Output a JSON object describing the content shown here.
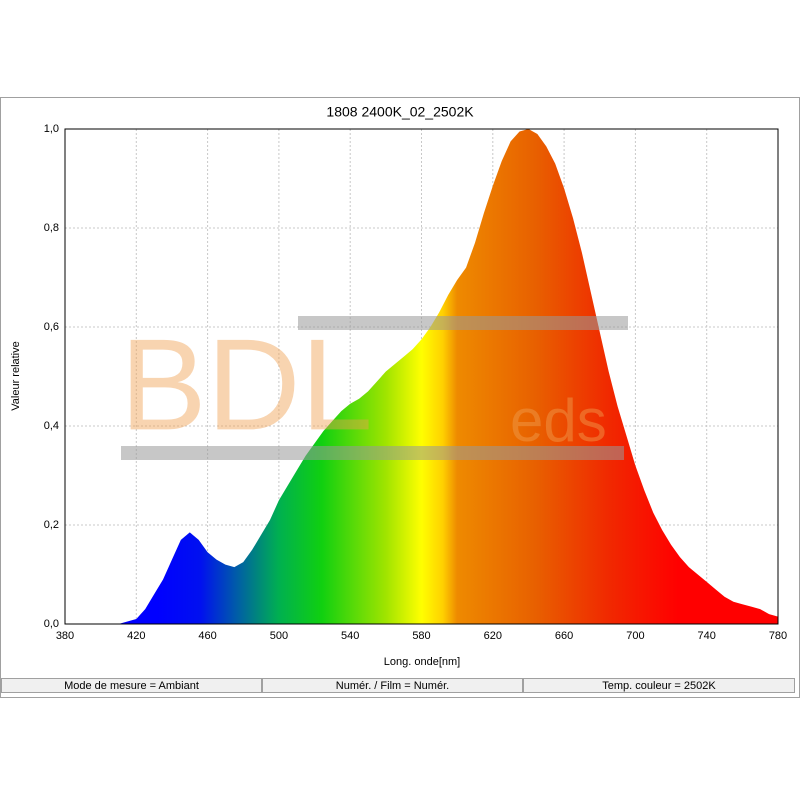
{
  "chart_data": {
    "type": "area",
    "title": "1808 2400K_02_2502K",
    "x_label": "Long. onde[nm]",
    "y_label": "Valeur relative",
    "watermark": "BDL",
    "watermark_small": "eds",
    "x": [
      380,
      385,
      390,
      395,
      400,
      405,
      410,
      415,
      420,
      425,
      430,
      435,
      440,
      445,
      450,
      455,
      460,
      465,
      470,
      475,
      480,
      485,
      490,
      495,
      500,
      505,
      510,
      515,
      520,
      525,
      530,
      535,
      540,
      545,
      550,
      555,
      560,
      565,
      570,
      575,
      580,
      585,
      590,
      595,
      600,
      605,
      610,
      615,
      620,
      625,
      630,
      635,
      640,
      645,
      650,
      655,
      660,
      665,
      670,
      675,
      680,
      685,
      690,
      695,
      700,
      705,
      710,
      715,
      720,
      725,
      730,
      735,
      740,
      745,
      750,
      755,
      760,
      765,
      770,
      775,
      780
    ],
    "values": [
      0,
      0,
      0,
      0,
      0,
      0,
      0,
      0.005,
      0.01,
      0.03,
      0.06,
      0.09,
      0.13,
      0.17,
      0.185,
      0.17,
      0.145,
      0.13,
      0.12,
      0.115,
      0.125,
      0.15,
      0.18,
      0.21,
      0.25,
      0.28,
      0.31,
      0.34,
      0.365,
      0.39,
      0.41,
      0.43,
      0.445,
      0.455,
      0.47,
      0.49,
      0.51,
      0.525,
      0.54,
      0.555,
      0.575,
      0.6,
      0.63,
      0.665,
      0.695,
      0.72,
      0.77,
      0.83,
      0.885,
      0.935,
      0.975,
      0.995,
      1.0,
      0.99,
      0.965,
      0.93,
      0.88,
      0.82,
      0.75,
      0.67,
      0.59,
      0.51,
      0.44,
      0.38,
      0.32,
      0.27,
      0.225,
      0.19,
      0.16,
      0.135,
      0.115,
      0.1,
      0.085,
      0.07,
      0.055,
      0.045,
      0.04,
      0.035,
      0.03,
      0.02,
      0.015
    ],
    "xlim": [
      380,
      780
    ],
    "xticks": [
      380,
      420,
      460,
      500,
      540,
      580,
      620,
      660,
      700,
      740,
      780
    ],
    "ylim": [
      0,
      1
    ],
    "yticks": [
      {
        "value": 0,
        "label": "0,0"
      },
      {
        "value": 0.2,
        "label": "0,2"
      },
      {
        "value": 0.4,
        "label": "0,4"
      },
      {
        "value": 0.6,
        "label": "0,6"
      },
      {
        "value": 0.8,
        "label": "0,8"
      },
      {
        "value": 1,
        "label": "1,0"
      }
    ],
    "grid": true
  },
  "status_bar": [
    "Mode de mesure = Ambiant",
    "Numér. / Film = Numér.",
    "Temp. couleur = 2502K"
  ]
}
